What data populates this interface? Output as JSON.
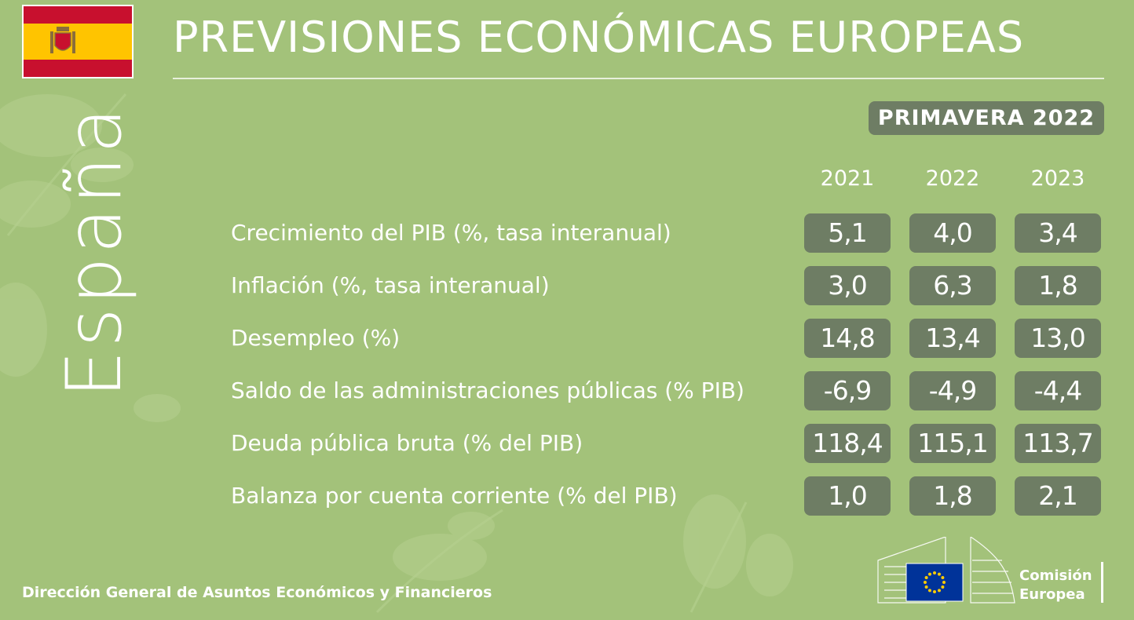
{
  "header": {
    "title": "PREVISIONES ECONÓMICAS EUROPEAS",
    "season": "PRIMAVERA 2022",
    "country": "España"
  },
  "table": {
    "years": [
      "2021",
      "2022",
      "2023"
    ],
    "rows": [
      {
        "label": "Crecimiento del PIB (%, tasa interanual)",
        "values": [
          "5,1",
          "4,0",
          "3,4"
        ]
      },
      {
        "label": "Inflación (%, tasa interanual)",
        "values": [
          "3,0",
          "6,3",
          "1,8"
        ]
      },
      {
        "label": "Desempleo (%)",
        "values": [
          "14,8",
          "13,4",
          "13,0"
        ]
      },
      {
        "label": "Saldo de las administraciones públicas (% PIB)",
        "values": [
          "-6,9",
          "-4,9",
          "-4,4"
        ]
      },
      {
        "label": "Deuda pública bruta (% del PIB)",
        "values": [
          "118,4",
          "115,1",
          "113,7"
        ]
      },
      {
        "label": "Balanza por cuenta corriente (% del PIB)",
        "values": [
          "1,0",
          "1,8",
          "2,1"
        ]
      }
    ]
  },
  "footer": {
    "text": "Dirección General de Asuntos Económicos y Financieros",
    "logo_line1": "Comisión",
    "logo_line2": "Europea"
  },
  "colors": {
    "background": "#a3c27a",
    "cell": "#6e7d64",
    "flag_red": "#c8102e",
    "flag_yellow": "#ffc400",
    "eu_blue": "#003399"
  },
  "icons": {
    "flag": "spain-flag-icon",
    "logo": "european-commission-logo"
  }
}
